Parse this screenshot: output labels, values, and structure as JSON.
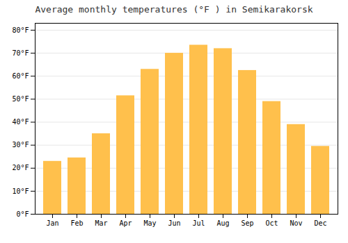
{
  "chart_data": {
    "type": "bar",
    "title": "Average monthly temperatures (°F ) in Semikarakorsk",
    "categories": [
      "Jan",
      "Feb",
      "Mar",
      "Apr",
      "May",
      "Jun",
      "Jul",
      "Aug",
      "Sep",
      "Oct",
      "Nov",
      "Dec"
    ],
    "values": [
      23,
      24.5,
      35,
      51.5,
      63,
      70,
      73.5,
      72,
      62.5,
      49,
      39,
      29.5
    ],
    "color": "#FFC04C",
    "ylim": [
      0,
      83
    ],
    "yticks": [
      {
        "value": 0,
        "label": "0°F"
      },
      {
        "value": 10,
        "label": "10°F"
      },
      {
        "value": 20,
        "label": "20°F"
      },
      {
        "value": 30,
        "label": "30°F"
      },
      {
        "value": 40,
        "label": "40°F"
      },
      {
        "value": 50,
        "label": "50°F"
      },
      {
        "value": 60,
        "label": "60°F"
      },
      {
        "value": 70,
        "label": "70°F"
      },
      {
        "value": 80,
        "label": "80°F"
      }
    ],
    "grid": true
  }
}
